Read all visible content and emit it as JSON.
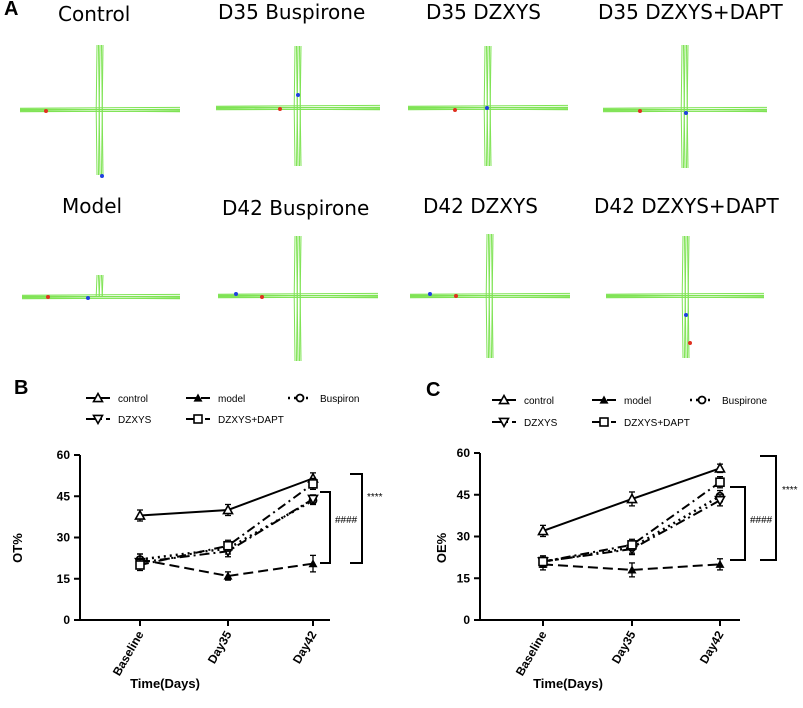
{
  "panel_a": {
    "letter": "A",
    "row1": [
      "Control",
      "D35 Buspirone",
      "D35 DZXYS",
      "D35 DZXYS+DAPT"
    ],
    "row2": [
      "Model",
      "D42 Buspirone",
      "D42 DZXYS",
      "D42 DZXYS+DAPT"
    ],
    "track_color": "#7fe354"
  },
  "chart_data": [
    {
      "type": "line",
      "panel": "B",
      "xlabel": "Time(Days)",
      "ylabel": "OT%",
      "categories": [
        "Baseline",
        "Day35",
        "Day42"
      ],
      "ylim": [
        0,
        60
      ],
      "yticks": [
        0,
        15,
        30,
        45,
        60
      ],
      "legend": [
        "control",
        "model",
        "Buspiron",
        "DZXYS",
        "DZXYS+DAPT"
      ],
      "series": [
        {
          "name": "control",
          "values": [
            38,
            40,
            51.5
          ],
          "errors": [
            2,
            2,
            2
          ]
        },
        {
          "name": "model",
          "values": [
            22,
            16,
            20.5
          ],
          "errors": [
            2,
            1.5,
            3
          ]
        },
        {
          "name": "Buspiron",
          "values": [
            22,
            26,
            43.5
          ],
          "errors": [
            2,
            2,
            1.5
          ]
        },
        {
          "name": "DZXYS",
          "values": [
            21,
            25,
            44
          ],
          "errors": [
            2,
            2,
            1.5
          ]
        },
        {
          "name": "DZXYS+DAPT",
          "values": [
            20,
            27,
            49.5
          ],
          "errors": [
            2,
            2,
            2
          ]
        }
      ],
      "annotations": [
        "****",
        "####"
      ]
    },
    {
      "type": "line",
      "panel": "C",
      "xlabel": "Time(Days)",
      "ylabel": "OE%",
      "categories": [
        "Baseline",
        "Day35",
        "Day42"
      ],
      "ylim": [
        0,
        60
      ],
      "yticks": [
        0,
        15,
        30,
        45,
        60
      ],
      "legend": [
        "control",
        "model",
        "Buspirone",
        "DZXYS",
        "DZXYS+DAPT"
      ],
      "series": [
        {
          "name": "control",
          "values": [
            32,
            43.5,
            54.5
          ],
          "errors": [
            2,
            2.5,
            1.5
          ]
        },
        {
          "name": "model",
          "values": [
            20,
            18,
            20
          ],
          "errors": [
            2,
            2.5,
            2
          ]
        },
        {
          "name": "Buspirone",
          "values": [
            21,
            26,
            44.5
          ],
          "errors": [
            2,
            2,
            2
          ]
        },
        {
          "name": "DZXYS",
          "values": [
            21,
            25.5,
            43
          ],
          "errors": [
            2,
            2,
            2
          ]
        },
        {
          "name": "DZXYS+DAPT",
          "values": [
            21,
            27,
            49.5
          ],
          "errors": [
            2,
            2,
            2
          ]
        }
      ],
      "annotations": [
        "****",
        "####"
      ]
    }
  ]
}
